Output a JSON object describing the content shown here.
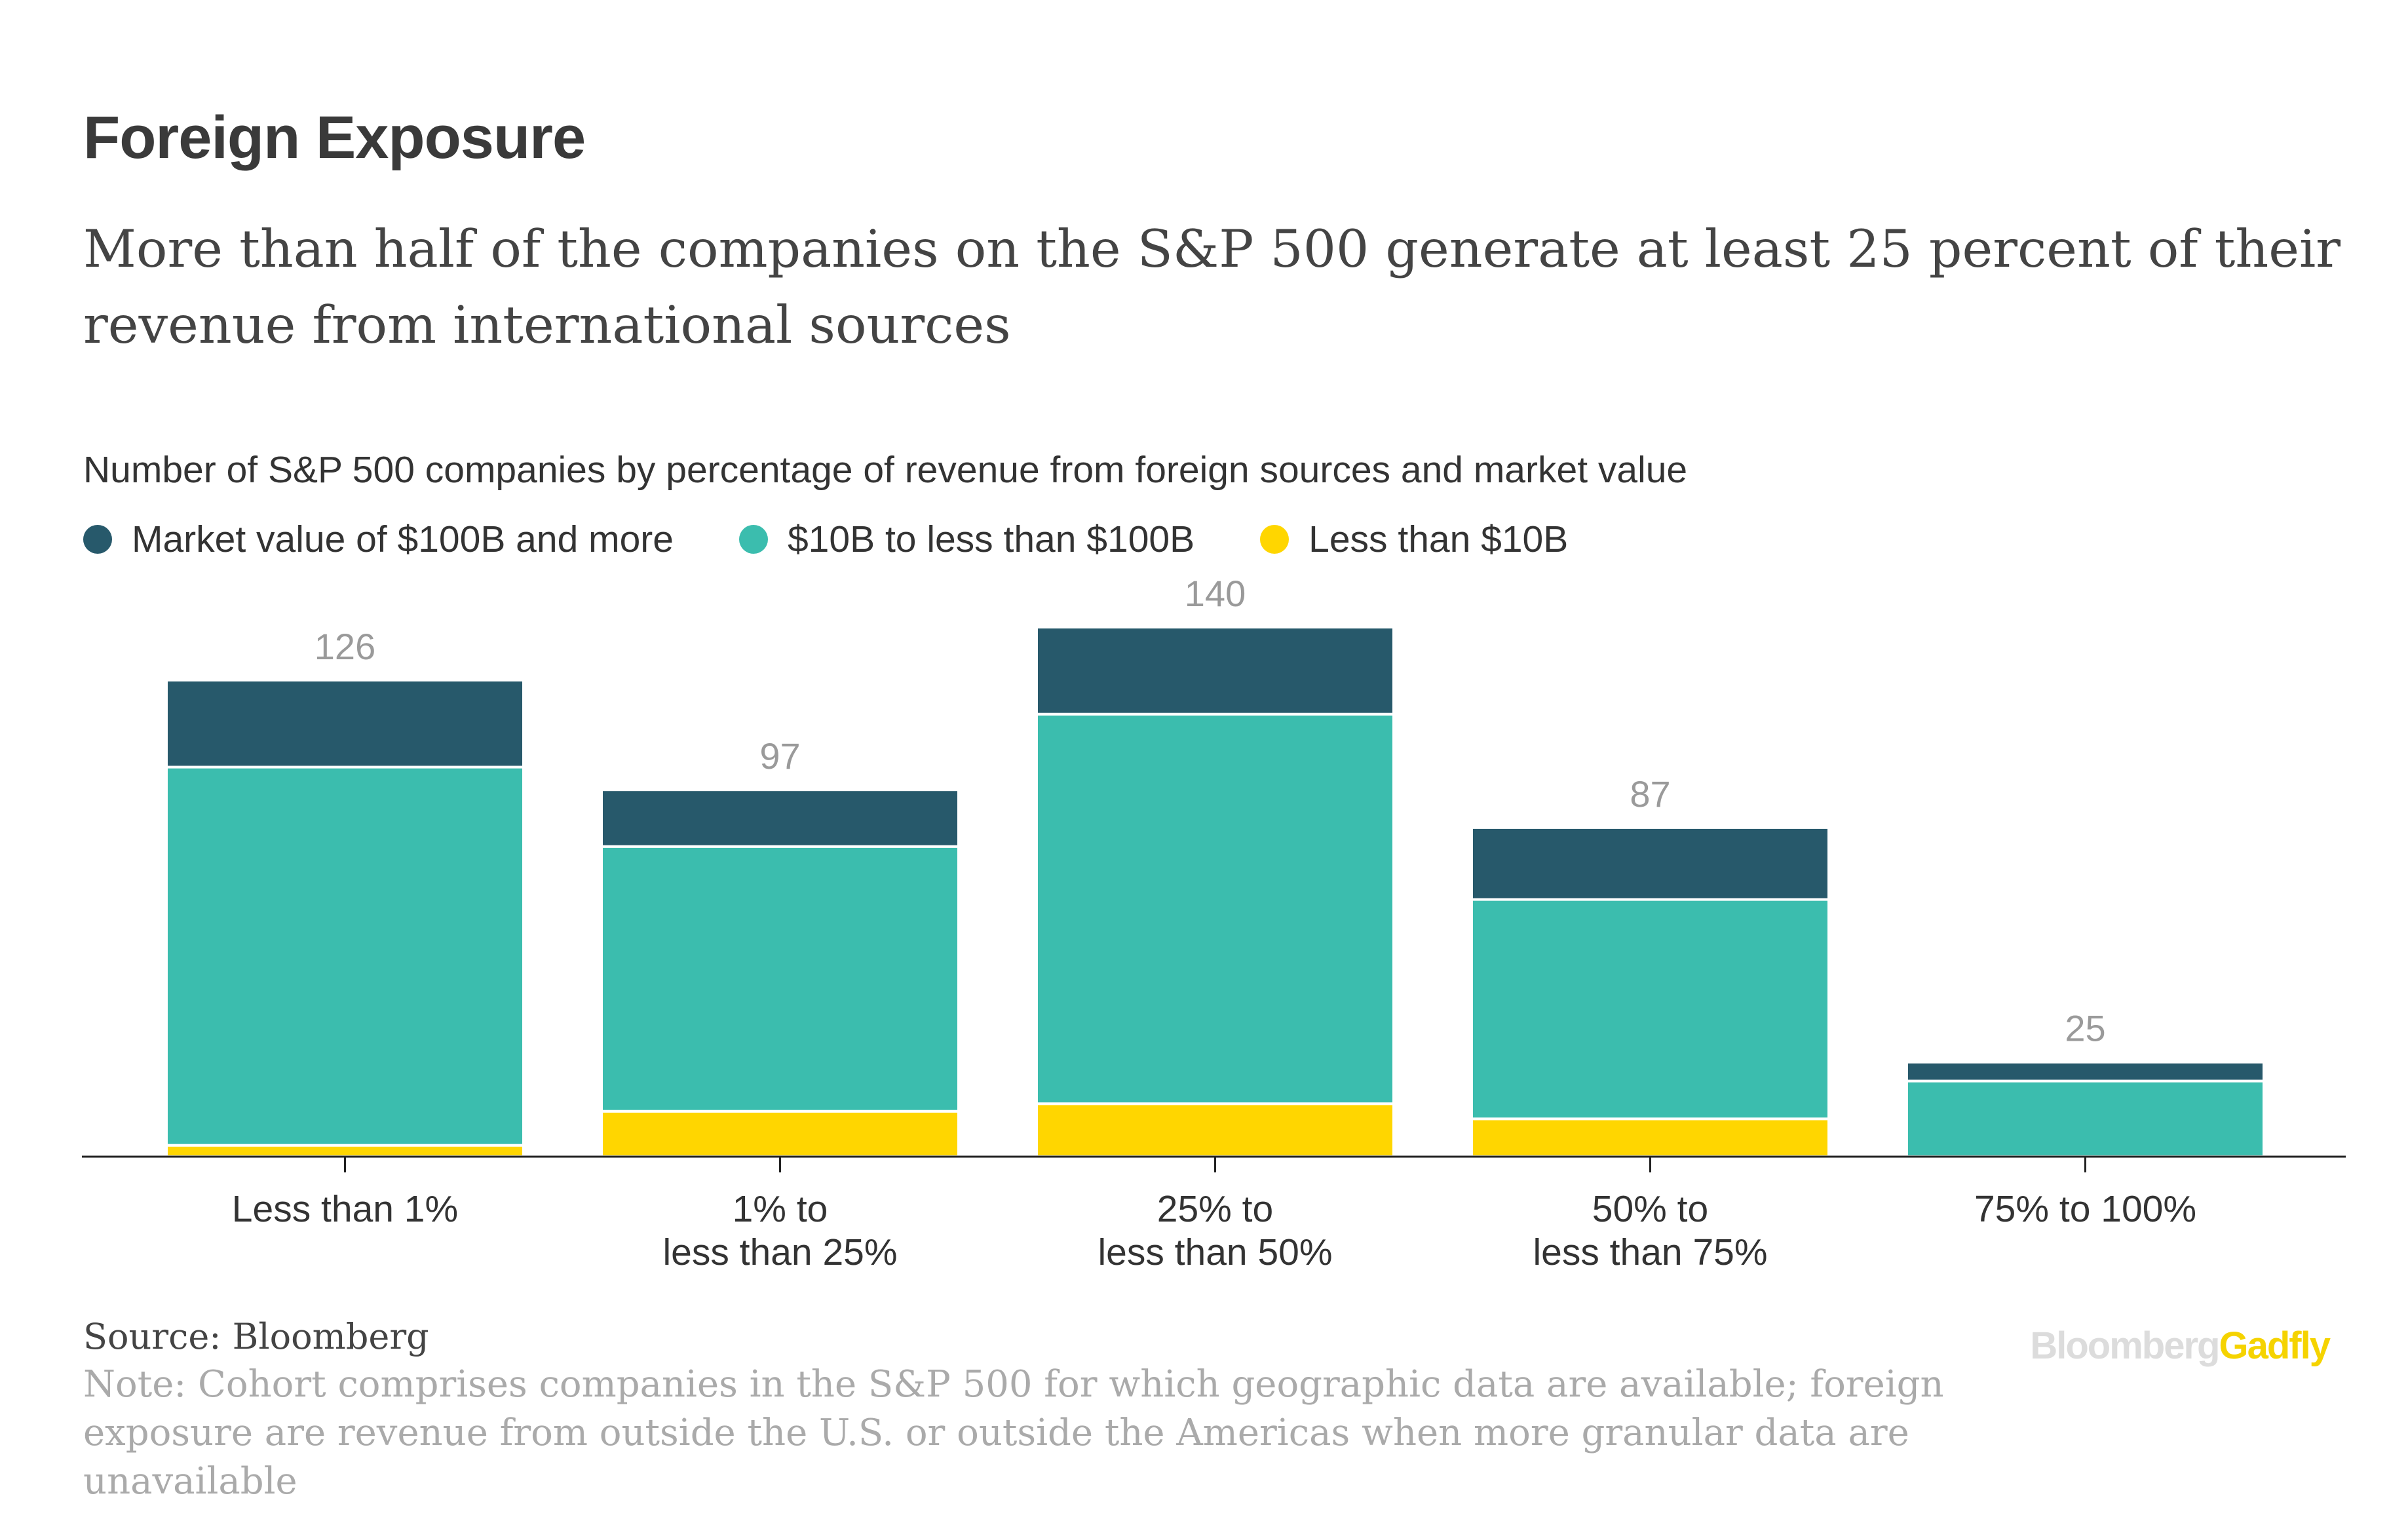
{
  "title": "Foreign Exposure",
  "subtitle": "More than half of the companies on the S&P 500 generate at least 25 percent of their revenue from international sources",
  "chart_heading": "Number of S&P 500 companies by percentage of revenue from foreign sources and market value",
  "legend": [
    {
      "label": "Market value of $100B and more",
      "color": "#27596b"
    },
    {
      "label": "$10B to less than $100B",
      "color": "#3bbdae"
    },
    {
      "label": "Less than $10B",
      "color": "#ffd600"
    }
  ],
  "chart_data": {
    "type": "bar",
    "stacked": true,
    "categories": [
      [
        "Less than 1%"
      ],
      [
        "1% to",
        "less than 25%"
      ],
      [
        "25% to",
        "less than 50%"
      ],
      [
        "50% to",
        "less than 75%"
      ],
      [
        "75% to 100%"
      ]
    ],
    "series": [
      {
        "name": "Less than $10B",
        "color": "#ffd600",
        "values": [
          3,
          12,
          14,
          10,
          0
        ]
      },
      {
        "name": "$10B to less than $100B",
        "color": "#3bbdae",
        "values": [
          100,
          70,
          103,
          58,
          20
        ]
      },
      {
        "name": "Market value of $100B and more",
        "color": "#27596b",
        "values": [
          23,
          15,
          23,
          19,
          5
        ]
      }
    ],
    "totals": [
      "126",
      "97",
      "140",
      "87",
      "25"
    ],
    "ylim": [
      0,
      140
    ],
    "grid": false,
    "legend_position": "top-left"
  },
  "source": "Source: Bloomberg",
  "note": "Note: Cohort comprises companies in the S&P 500 for which geographic data are available; foreign exposure are revenue from outside the U.S. or outside the Americas when more granular data are unavailable",
  "logo": {
    "part1": "Bloomberg",
    "part2": "Gadfly"
  }
}
